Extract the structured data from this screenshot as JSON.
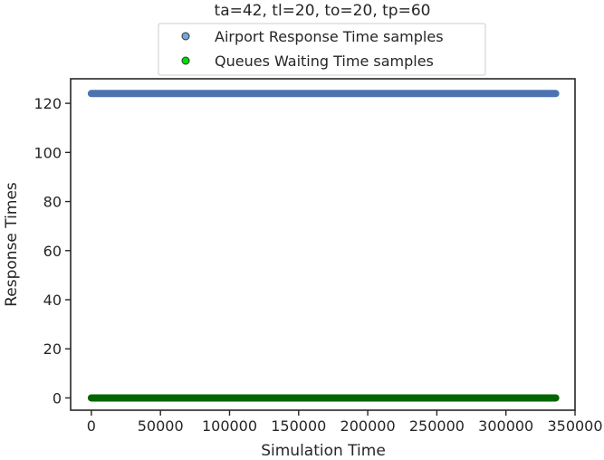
{
  "chart_data": {
    "type": "scatter",
    "title": "ta=42, tl=20, to=20, tp=60",
    "xlabel": "Simulation Time",
    "ylabel": "Response Times",
    "xlim": [
      -15000,
      350000
    ],
    "ylim": [
      -5,
      130
    ],
    "xticks": [
      0,
      50000,
      100000,
      150000,
      200000,
      250000,
      300000,
      350000
    ],
    "xtick_labels": [
      "0",
      "50000",
      "100000",
      "150000",
      "200000",
      "250000",
      "300000",
      "350000"
    ],
    "yticks": [
      0,
      20,
      40,
      60,
      80,
      100,
      120
    ],
    "ytick_labels": [
      "0",
      "20",
      "40",
      "60",
      "80",
      "100",
      "120"
    ],
    "legend_position": "top-center",
    "grid": false,
    "series": [
      {
        "name": "Airport Response Time samples",
        "x_start": 0,
        "x_end": 336000,
        "y": 124,
        "color": "#4c72b0",
        "legend_color": "#6fa8dc"
      },
      {
        "name": "Queues Waiting Time samples",
        "x_start": 0,
        "x_end": 336000,
        "y": 0,
        "color": "#006400",
        "legend_color": "#00dd00"
      }
    ]
  }
}
